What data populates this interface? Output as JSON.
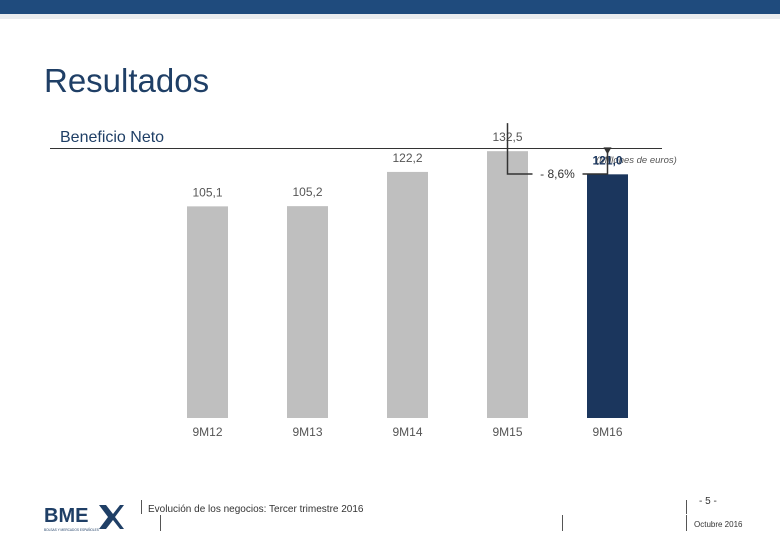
{
  "header": {
    "title": "Resultados",
    "section": "Beneficio Neto",
    "units": "(Millones de euros)"
  },
  "chart_data": {
    "type": "bar",
    "categories": [
      "9M12",
      "9M13",
      "9M14",
      "9M15",
      "9M16"
    ],
    "values": [
      105.1,
      105.2,
      122.2,
      132.5,
      121.0
    ],
    "value_labels": [
      "105,1",
      "105,2",
      "122,2",
      "132,5",
      "121,0"
    ],
    "highlight_index": 4,
    "colors": {
      "bar": "#bfbfbf",
      "highlight": "#1b365d",
      "highlight_label": "#1b365d"
    },
    "annotation": {
      "text": "- 8,6%",
      "from_index": 3,
      "to_index": 4
    },
    "ylim": [
      0,
      145
    ]
  },
  "footer": {
    "logo": "BME",
    "logo_tagline": "BOLSAS Y MERCADOS ESPAÑOLES",
    "text": "Evolución de los negocios: Tercer trimestre 2016",
    "page": "- 5 -",
    "date": "Octubre 2016"
  }
}
